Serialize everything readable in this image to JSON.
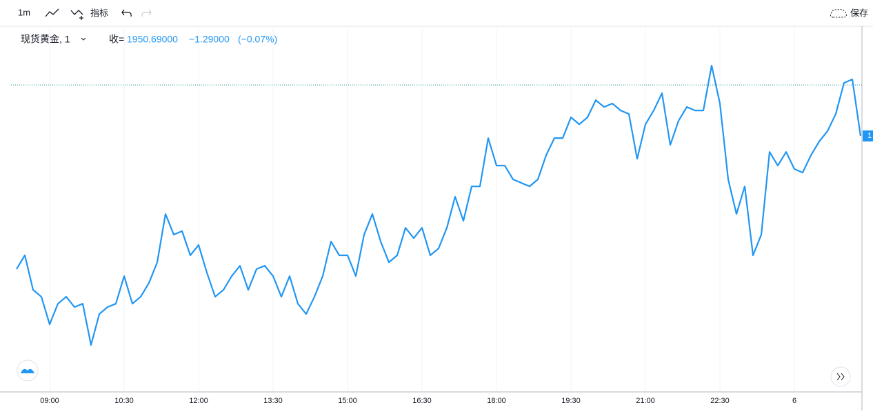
{
  "toolbar": {
    "interval": "1m",
    "indicators": "指标",
    "save": "保存"
  },
  "legend": {
    "symbol": "现货黄金, 1",
    "close_label": "收=",
    "close": "1950.69000",
    "change": "−1.29000",
    "change_pct": "(−0.07%)"
  },
  "chart_data": {
    "type": "line",
    "x": [
      "08:20",
      "08:30",
      "08:40",
      "08:50",
      "09:00",
      "09:10",
      "09:20",
      "09:30",
      "09:40",
      "09:50",
      "10:00",
      "10:10",
      "10:20",
      "10:30",
      "10:40",
      "10:50",
      "11:00",
      "11:10",
      "11:20",
      "11:30",
      "11:40",
      "11:50",
      "12:00",
      "12:10",
      "12:20",
      "12:30",
      "12:40",
      "12:50",
      "13:00",
      "13:10",
      "13:20",
      "13:30",
      "13:40",
      "13:50",
      "14:00",
      "14:10",
      "14:20",
      "14:30",
      "14:40",
      "14:50",
      "15:00",
      "15:10",
      "15:20",
      "15:30",
      "15:40",
      "15:50",
      "16:00",
      "16:10",
      "16:20",
      "16:30",
      "16:40",
      "16:50",
      "17:00",
      "17:10",
      "17:20",
      "17:30",
      "17:40",
      "17:50",
      "18:00",
      "18:10",
      "18:20",
      "18:30",
      "18:40",
      "18:50",
      "19:00",
      "19:10",
      "19:20",
      "19:30",
      "19:40",
      "19:50",
      "20:00",
      "20:10",
      "20:20",
      "20:30",
      "20:40",
      "20:50",
      "21:00",
      "21:10",
      "21:20",
      "21:30",
      "21:40",
      "21:50",
      "22:00",
      "22:10",
      "22:20",
      "22:30",
      "22:40",
      "22:50",
      "23:00",
      "23:10",
      "23:20",
      "23:30",
      "23:40",
      "23:50",
      "00:00",
      "00:10",
      "00:20",
      "00:30",
      "00:40",
      "00:50",
      "01:00",
      "01:10",
      "01:20"
    ],
    "series": [
      {
        "name": "现货黄金",
        "color": "#2196f3",
        "values": [
          1941.92,
          1942.83,
          1940.55,
          1940.1,
          1938.28,
          1939.64,
          1940.1,
          1939.42,
          1939.64,
          1936.92,
          1938.96,
          1939.42,
          1939.64,
          1941.46,
          1939.64,
          1940.1,
          1941.01,
          1942.37,
          1945.55,
          1944.19,
          1944.42,
          1942.83,
          1943.51,
          1941.69,
          1940.1,
          1940.55,
          1941.46,
          1942.14,
          1940.55,
          1941.92,
          1942.14,
          1941.46,
          1940.1,
          1941.46,
          1939.64,
          1938.96,
          1940.1,
          1941.46,
          1943.74,
          1942.83,
          1942.83,
          1941.46,
          1944.19,
          1945.55,
          1943.74,
          1942.37,
          1942.83,
          1944.64,
          1943.96,
          1944.64,
          1942.83,
          1943.28,
          1944.64,
          1946.69,
          1945.1,
          1947.37,
          1947.37,
          1950.55,
          1948.74,
          1948.74,
          1947.83,
          1947.6,
          1947.37,
          1947.83,
          1949.42,
          1950.55,
          1950.55,
          1951.92,
          1951.46,
          1951.92,
          1953.05,
          1952.6,
          1952.83,
          1952.37,
          1952.14,
          1949.19,
          1951.46,
          1952.37,
          1953.51,
          1950.1,
          1951.69,
          1952.6,
          1952.37,
          1952.37,
          1955.33,
          1952.83,
          1947.83,
          1945.55,
          1947.37,
          1942.83,
          1944.19,
          1949.64,
          1948.74,
          1949.64,
          1948.51,
          1948.28,
          1949.42,
          1950.33,
          1951.01,
          1952.14,
          1954.19,
          1954.42,
          1950.69
        ]
      }
    ],
    "xticks": [
      {
        "value": "09:00",
        "label": "09:00"
      },
      {
        "value": "10:30",
        "label": "10:30"
      },
      {
        "value": "12:00",
        "label": "12:00"
      },
      {
        "value": "13:30",
        "label": "13:30"
      },
      {
        "value": "15:00",
        "label": "15:00"
      },
      {
        "value": "16:30",
        "label": "16:30"
      },
      {
        "value": "18:00",
        "label": "18:00"
      },
      {
        "value": "19:30",
        "label": "19:30"
      },
      {
        "value": "21:00",
        "label": "21:00"
      },
      {
        "value": "22:30",
        "label": "22:30"
      },
      {
        "value": "00:00",
        "label": "6"
      }
    ],
    "ylim": [
      1933.83,
      1957.83
    ],
    "price_line": 1954.05,
    "price_badge": "1",
    "grid": true
  }
}
